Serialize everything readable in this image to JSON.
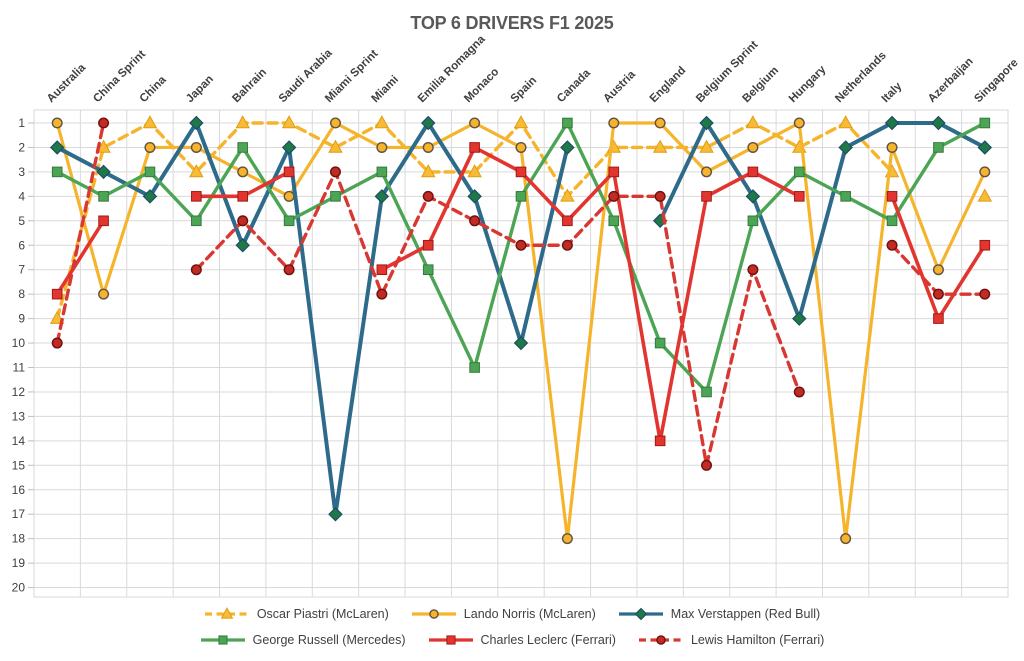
{
  "title": "TOP 6 DRIVERS F1 2025",
  "colors": {
    "background": "#FFFFFF",
    "grid": "#D9D9D9",
    "axis_text": "#404040",
    "category_text": "#3F3F3F",
    "title_text": "#595959"
  },
  "chart_data": {
    "type": "line",
    "title": "TOP 6 DRIVERS F1 2025",
    "grid": true,
    "legend_position": "bottom",
    "categories": [
      "Australia",
      "China Sprint",
      "China",
      "Japan",
      "Bahrain",
      "Saudi Arabia",
      "Miami Sprint",
      "Miami",
      "Emilia Romagna",
      "Monaco",
      "Spain",
      "Canada",
      "Austria",
      "England",
      "Belgium Sprint",
      "Belgium",
      "Hungary",
      "Netherlands",
      "Italy",
      "Azerbaijan",
      "Singapore"
    ],
    "y_axis": {
      "min": 1,
      "max": 20,
      "reversed": true,
      "ticks": [
        1,
        2,
        3,
        4,
        5,
        6,
        7,
        8,
        9,
        10,
        11,
        12,
        13,
        14,
        15,
        16,
        17,
        18,
        19,
        20
      ]
    },
    "series": [
      {
        "name": "Oscar Piastri (McLaren)",
        "color": "#F6B42C",
        "dash": true,
        "marker": "triangle",
        "marker_fill": "#F9BA35",
        "marker_stroke": "#DD9E14",
        "values": [
          9,
          2,
          1,
          3,
          1,
          1,
          2,
          1,
          3,
          3,
          1,
          4,
          2,
          2,
          2,
          1,
          2,
          1,
          3,
          null,
          4
        ]
      },
      {
        "name": "Lando Norris (McLaren)",
        "color": "#F6B42C",
        "dash": false,
        "marker": "circle",
        "marker_fill": "#F6B42C",
        "marker_stroke": "#5F5143",
        "values": [
          1,
          8,
          2,
          2,
          3,
          4,
          1,
          2,
          2,
          1,
          2,
          18,
          1,
          1,
          3,
          2,
          1,
          18,
          2,
          7,
          3
        ]
      },
      {
        "name": "Max Verstappen (Red Bull)",
        "color": "#2E6B8A",
        "dash": false,
        "marker": "diamond",
        "marker_fill": "#1E7847",
        "marker_stroke": "#1C4F66",
        "values": [
          2,
          3,
          4,
          1,
          6,
          2,
          17,
          4,
          1,
          4,
          10,
          2,
          null,
          5,
          1,
          4,
          9,
          2,
          1,
          1,
          2
        ]
      },
      {
        "name": "George Russell (Mercedes)",
        "color": "#4CA455",
        "dash": false,
        "marker": "square",
        "marker_fill": "#4CA455",
        "marker_stroke": "#357A3C",
        "values": [
          3,
          4,
          3,
          5,
          2,
          5,
          4,
          3,
          7,
          11,
          4,
          1,
          5,
          10,
          12,
          5,
          3,
          4,
          5,
          2,
          1
        ]
      },
      {
        "name": "Charles Leclerc (Ferrari)",
        "color": "#E23530",
        "dash": false,
        "marker": "square",
        "marker_fill": "#E23530",
        "marker_stroke": "#9E1B15",
        "values": [
          8,
          5,
          null,
          4,
          4,
          3,
          null,
          7,
          6,
          2,
          3,
          5,
          3,
          14,
          4,
          3,
          4,
          null,
          4,
          9,
          6
        ]
      },
      {
        "name": "Lewis Hamilton (Ferrari)",
        "color": "#D93732",
        "dash": true,
        "marker": "circle",
        "marker_fill": "#C02B26",
        "marker_stroke": "#6E110D",
        "values": [
          10,
          1,
          null,
          7,
          5,
          7,
          3,
          8,
          4,
          5,
          6,
          6,
          4,
          4,
          15,
          7,
          12,
          null,
          6,
          8,
          8
        ]
      }
    ]
  }
}
